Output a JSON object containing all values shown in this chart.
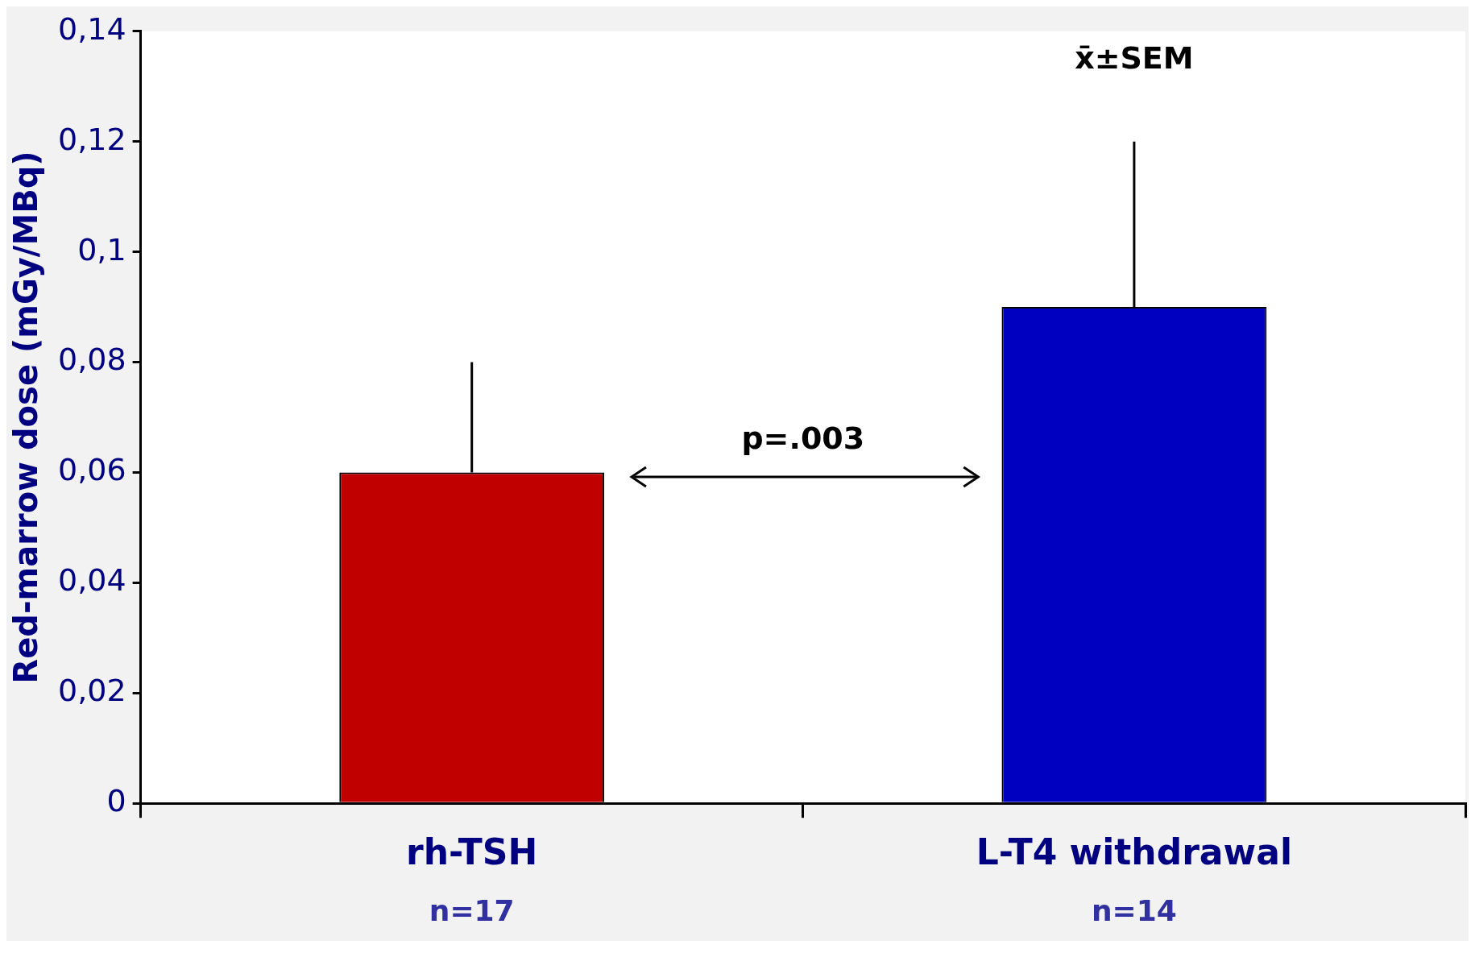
{
  "chart_data": {
    "type": "bar",
    "ylabel": "Red-marrow dose (mGy/MBq)",
    "categories": [
      "rh-TSH",
      "L-T4 withdrawal"
    ],
    "values": [
      0.06,
      0.09
    ],
    "colors": [
      "#c00000",
      "#0000c0"
    ],
    "errors": [
      [
        0.06,
        0.08
      ],
      [
        0.09,
        0.12
      ]
    ],
    "ylim": [
      0,
      0.14
    ],
    "yticks": [
      {
        "value": 0,
        "label": "0"
      },
      {
        "value": 0.02,
        "label": "0,02"
      },
      {
        "value": 0.04,
        "label": "0,04"
      },
      {
        "value": 0.06,
        "label": "0,06"
      },
      {
        "value": 0.08,
        "label": "0,08"
      },
      {
        "value": 0.1,
        "label": "0,1"
      },
      {
        "value": 0.12,
        "label": "0,12"
      },
      {
        "value": 0.14,
        "label": "0,14"
      }
    ],
    "grid": false,
    "legend": false,
    "annotations": [
      "x̄±SEM",
      "p=.003",
      "n=17",
      "n=14"
    ]
  }
}
